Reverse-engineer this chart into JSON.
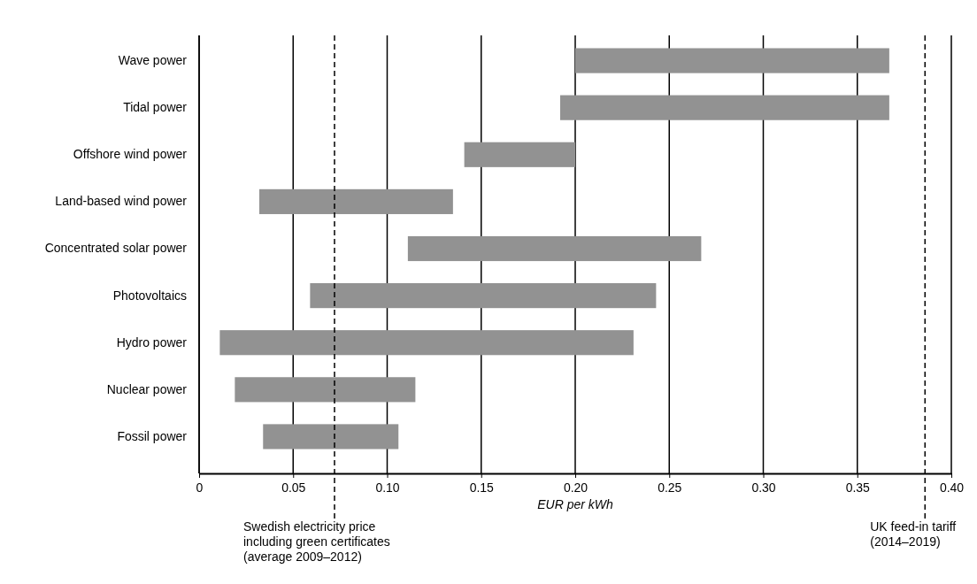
{
  "chart_data": {
    "type": "bar",
    "orientation": "horizontal",
    "xlabel": "EUR per kWh",
    "categories": [
      "Wave power",
      "Tidal power",
      "Offshore wind power",
      "Land-based wind power",
      "Concentrated solar power",
      "Photovoltaics",
      "Hydro power",
      "Nuclear power",
      "Fossil power"
    ],
    "base": [
      0.2,
      0.192,
      0.141,
      0.032,
      0.111,
      0.059,
      0.011,
      0.019,
      0.034
    ],
    "values": [
      0.167,
      0.175,
      0.059,
      0.103,
      0.156,
      0.184,
      0.22,
      0.096,
      0.072
    ],
    "color": "#929292",
    "xlim": [
      0,
      0.4
    ],
    "xticks": [
      0,
      0.05,
      {
        "value": 0.1,
        "label": "0.10"
      },
      0.15,
      {
        "value": 0.2,
        "label": "0.20"
      },
      0.25,
      {
        "value": 0.3,
        "label": "0.30"
      },
      0.35,
      {
        "value": 0.4,
        "label": "0.40"
      }
    ],
    "grid": "x",
    "ref_lines": [
      {
        "axis": "x",
        "value": 0.072,
        "label": "Swedish electricity price\nincluding green certificates\n(average 2009–2012)",
        "line_style": "dashed"
      },
      {
        "axis": "x",
        "value": 0.386,
        "label": "UK feed-in tariff\n(2014–2019)",
        "line_style": "dashed"
      }
    ]
  }
}
